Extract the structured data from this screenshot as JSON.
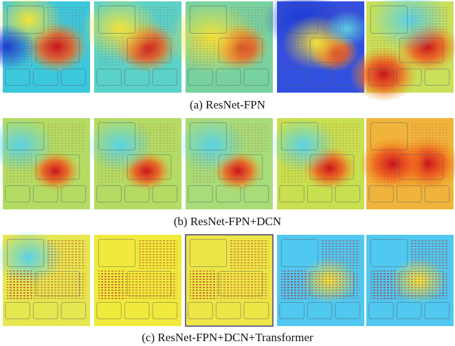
{
  "captions": [
    "(a) ResNet-FPN",
    "(b) ResNet-FPN+DCN",
    "(c) ResNet-FPN+DCN+Transformer"
  ]
}
